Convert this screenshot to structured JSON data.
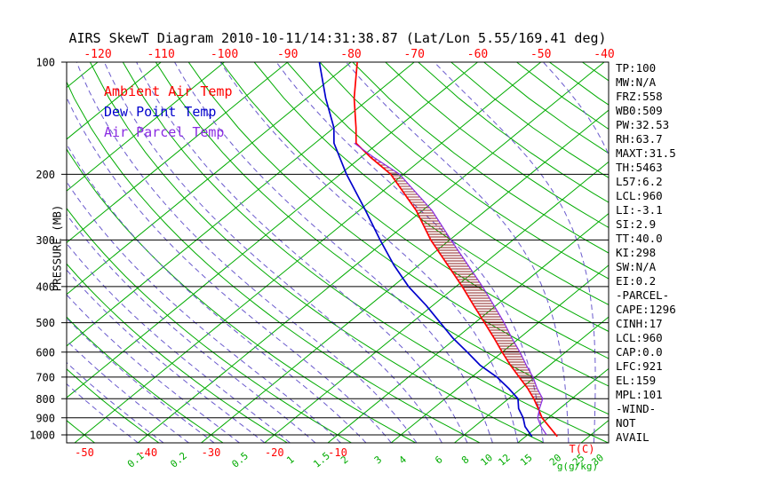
{
  "title": "AIRS SkewT Diagram 2010-10-11/14:31:38.87 (Lat/Lon 5.55/169.41 deg)",
  "colors": {
    "ambient": "#ff0000",
    "dewpoint": "#0000cc",
    "parcel": "#8a2be2",
    "isotherm": "#00ab00",
    "dry_adiabat": "#00ab00",
    "moist_adiabat": "#6a5acd",
    "pressure_line": "#000000",
    "hatch": "#8b2222",
    "axis_temp_label": "#ff0000",
    "mixing_label": "#00ab00"
  },
  "legend": {
    "items": [
      {
        "label": "Ambient Air Temp",
        "color": "#ff0000"
      },
      {
        "label": "Dew Point Temp",
        "color": "#0000cc"
      },
      {
        "label": "Air Parcel Temp",
        "color": "#8a2be2"
      }
    ]
  },
  "axes": {
    "pressure_label": "PRESSURE (MB)",
    "pressure_ticks": [
      100,
      200,
      300,
      400,
      500,
      600,
      700,
      800,
      900,
      1000
    ],
    "top_temp_ticks": [
      -120,
      -110,
      -100,
      -90,
      -80,
      -70,
      -60,
      -50,
      -40
    ],
    "bottom_temp_ticks": [
      -50,
      -40,
      -30,
      -20,
      -10
    ],
    "bottom_temp_unit": "T(C)",
    "mixing_ratio_ticks": [
      0.1,
      0.2,
      0.5,
      1,
      1.5,
      2,
      3,
      4,
      6,
      8,
      10,
      12,
      15,
      20,
      25,
      30
    ],
    "mixing_ratio_unit": "g(g/kg)"
  },
  "stats_panel": {
    "lines": [
      "TP:100",
      "MW:N/A",
      "FRZ:558",
      "WB0:509",
      "PW:32.53",
      "RH:63.7",
      "MAXT:31.5",
      "TH:5463",
      "L57:6.2",
      "LCL:960",
      "LI:-3.1",
      "SI:2.9",
      "TT:40.0",
      "KI:298",
      "SW:N/A",
      "EI:0.2",
      "-PARCEL-",
      "CAPE:1296",
      "CINH:17",
      "LCL:960",
      "CAP:0.0",
      "LFC:921",
      "EL:159",
      "MPL:101",
      "-WIND-",
      "NOT",
      "AVAIL"
    ]
  },
  "chart_data": {
    "type": "line",
    "subtype": "skew-t_log-p",
    "title": "AIRS SkewT Diagram 2010-10-11/14:31:38.87 (Lat/Lon 5.55/169.41 deg)",
    "xlabel": "T(C)",
    "ylabel": "PRESSURE (MB)",
    "pressure_scale": "log",
    "pressure_range_mb": [
      100,
      1050
    ],
    "top_axis_temp_ticks_C": [
      -120,
      -110,
      -100,
      -90,
      -80,
      -70,
      -60,
      -50,
      -40
    ],
    "bottom_axis_temp_ticks_C": [
      -50,
      -40,
      -30,
      -20,
      -10
    ],
    "mixing_ratio_ticks_g_kg": [
      0.1,
      0.2,
      0.5,
      1,
      1.5,
      2,
      3,
      4,
      6,
      8,
      10,
      12,
      15,
      20,
      25,
      30
    ],
    "grid": "isotherms + dry adiabats (green), moist adiabats (dashed violet), isobars (black)",
    "series": [
      {
        "name": "Ambient Air Temp",
        "color": "#ff0000",
        "points": [
          [
            1010,
            25
          ],
          [
            950,
            21.8
          ],
          [
            900,
            19
          ],
          [
            850,
            16.6
          ],
          [
            800,
            14
          ],
          [
            750,
            11
          ],
          [
            700,
            7.5
          ],
          [
            650,
            3.8
          ],
          [
            600,
            0
          ],
          [
            550,
            -4
          ],
          [
            500,
            -8.5
          ],
          [
            450,
            -13.5
          ],
          [
            400,
            -19
          ],
          [
            350,
            -25.5
          ],
          [
            300,
            -33
          ],
          [
            250,
            -41
          ],
          [
            200,
            -52
          ],
          [
            180,
            -58.5
          ],
          [
            165,
            -63.5
          ],
          [
            150,
            -66.5
          ],
          [
            125,
            -72.5
          ],
          [
            100,
            -79
          ]
        ]
      },
      {
        "name": "Dew Point Temp",
        "color": "#0000cc",
        "points": [
          [
            1010,
            21
          ],
          [
            950,
            18
          ],
          [
            900,
            16
          ],
          [
            850,
            13.5
          ],
          [
            800,
            11.5
          ],
          [
            750,
            8
          ],
          [
            700,
            4
          ],
          [
            650,
            -1
          ],
          [
            600,
            -5.5
          ],
          [
            550,
            -10.5
          ],
          [
            500,
            -15.5
          ],
          [
            450,
            -21
          ],
          [
            400,
            -27.5
          ],
          [
            350,
            -34
          ],
          [
            300,
            -41
          ],
          [
            250,
            -49
          ],
          [
            200,
            -59
          ],
          [
            165,
            -67
          ],
          [
            150,
            -70
          ],
          [
            125,
            -77
          ],
          [
            100,
            -85
          ]
        ]
      },
      {
        "name": "Air Parcel Temp",
        "color": "#8a2be2",
        "points": [
          [
            1000,
            23
          ],
          [
            950,
            20.5
          ],
          [
            900,
            18.3
          ],
          [
            850,
            16.8
          ],
          [
            800,
            15.4
          ],
          [
            750,
            12.5
          ],
          [
            700,
            9.7
          ],
          [
            650,
            6.3
          ],
          [
            600,
            2.8
          ],
          [
            550,
            -1.2
          ],
          [
            500,
            -5.4
          ],
          [
            450,
            -10.3
          ],
          [
            400,
            -15.8
          ],
          [
            350,
            -22.3
          ],
          [
            300,
            -29.8
          ],
          [
            250,
            -38.5
          ],
          [
            200,
            -50.6
          ],
          [
            180,
            -58
          ],
          [
            165,
            -63.8
          ]
        ]
      }
    ],
    "cape_hatch": {
      "between": [
        "Ambient Air Temp",
        "Air Parcel Temp"
      ],
      "pressure_range_mb": [
        165,
        920
      ]
    }
  }
}
